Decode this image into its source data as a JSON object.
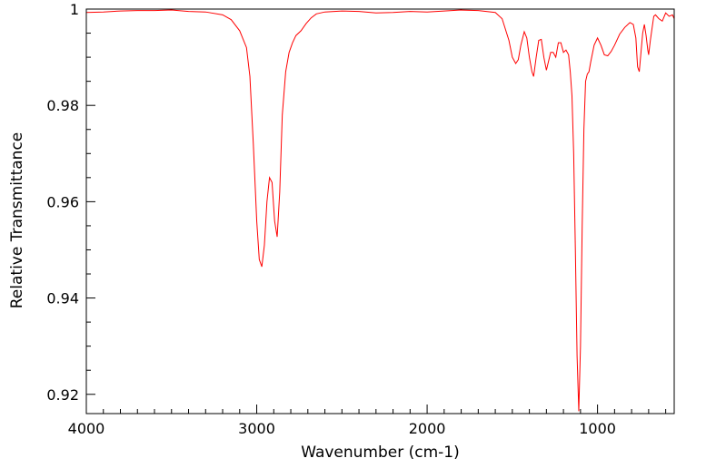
{
  "chart_data": {
    "type": "line",
    "title": "",
    "xlabel": "Wavenumber (cm-1)",
    "ylabel": "Relative Transmittance",
    "xlim": [
      4000,
      550
    ],
    "ylim": [
      0.916,
      1.0
    ],
    "x_reversed": true,
    "grid": false,
    "legend": "none",
    "x_ticks": [
      {
        "value": 4000,
        "label": "4000"
      },
      {
        "value": 3000,
        "label": "3000"
      },
      {
        "value": 2000,
        "label": "2000"
      },
      {
        "value": 1000,
        "label": "1000"
      }
    ],
    "y_ticks": [
      {
        "value": 1.0,
        "label": "1"
      },
      {
        "value": 0.98,
        "label": "0.98"
      },
      {
        "value": 0.96,
        "label": "0.96"
      },
      {
        "value": 0.94,
        "label": "0.94"
      },
      {
        "value": 0.92,
        "label": "0.92"
      }
    ],
    "series": [
      {
        "color": "#ff0000",
        "x": [
          4000,
          3900,
          3800,
          3700,
          3600,
          3500,
          3400,
          3300,
          3200,
          3150,
          3100,
          3060,
          3040,
          3020,
          3000,
          2985,
          2970,
          2955,
          2940,
          2925,
          2910,
          2895,
          2880,
          2865,
          2850,
          2830,
          2810,
          2790,
          2770,
          2740,
          2710,
          2680,
          2650,
          2600,
          2500,
          2400,
          2300,
          2200,
          2100,
          2000,
          1900,
          1800,
          1700,
          1600,
          1560,
          1520,
          1500,
          1480,
          1465,
          1450,
          1430,
          1415,
          1400,
          1385,
          1375,
          1360,
          1345,
          1330,
          1315,
          1300,
          1290,
          1275,
          1260,
          1245,
          1230,
          1215,
          1200,
          1185,
          1170,
          1160,
          1150,
          1140,
          1130,
          1120,
          1110,
          1100,
          1090,
          1080,
          1070,
          1060,
          1050,
          1040,
          1020,
          1000,
          980,
          960,
          940,
          920,
          900,
          870,
          840,
          810,
          790,
          775,
          765,
          755,
          745,
          735,
          725,
          715,
          705,
          700,
          690,
          680,
          670,
          660,
          640,
          620,
          600,
          580,
          560,
          550
        ],
        "y": [
          0.9993,
          0.9994,
          0.9996,
          0.9997,
          0.9997,
          0.9998,
          0.9995,
          0.9994,
          0.9988,
          0.9978,
          0.9955,
          0.992,
          0.986,
          0.972,
          0.956,
          0.948,
          0.9465,
          0.951,
          0.96,
          0.965,
          0.964,
          0.956,
          0.9527,
          0.962,
          0.978,
          0.987,
          0.991,
          0.993,
          0.9945,
          0.9955,
          0.997,
          0.9982,
          0.999,
          0.9994,
          0.9996,
          0.9995,
          0.9992,
          0.9993,
          0.9995,
          0.9994,
          0.9996,
          0.9998,
          0.9997,
          0.9993,
          0.998,
          0.9935,
          0.99,
          0.9887,
          0.9895,
          0.9925,
          0.9953,
          0.994,
          0.99,
          0.987,
          0.986,
          0.99,
          0.9935,
          0.9937,
          0.99,
          0.9873,
          0.9888,
          0.991,
          0.991,
          0.99,
          0.993,
          0.993,
          0.991,
          0.9915,
          0.9905,
          0.987,
          0.982,
          0.97,
          0.95,
          0.928,
          0.9165,
          0.93,
          0.955,
          0.975,
          0.985,
          0.9865,
          0.987,
          0.989,
          0.9925,
          0.994,
          0.9925,
          0.9905,
          0.9903,
          0.9912,
          0.9925,
          0.9948,
          0.9962,
          0.9972,
          0.9968,
          0.994,
          0.988,
          0.987,
          0.991,
          0.995,
          0.9968,
          0.9945,
          0.9915,
          0.9905,
          0.9935,
          0.996,
          0.9985,
          0.9988,
          0.998,
          0.9975,
          0.9992,
          0.9985,
          0.9988,
          0.998
        ]
      }
    ]
  }
}
